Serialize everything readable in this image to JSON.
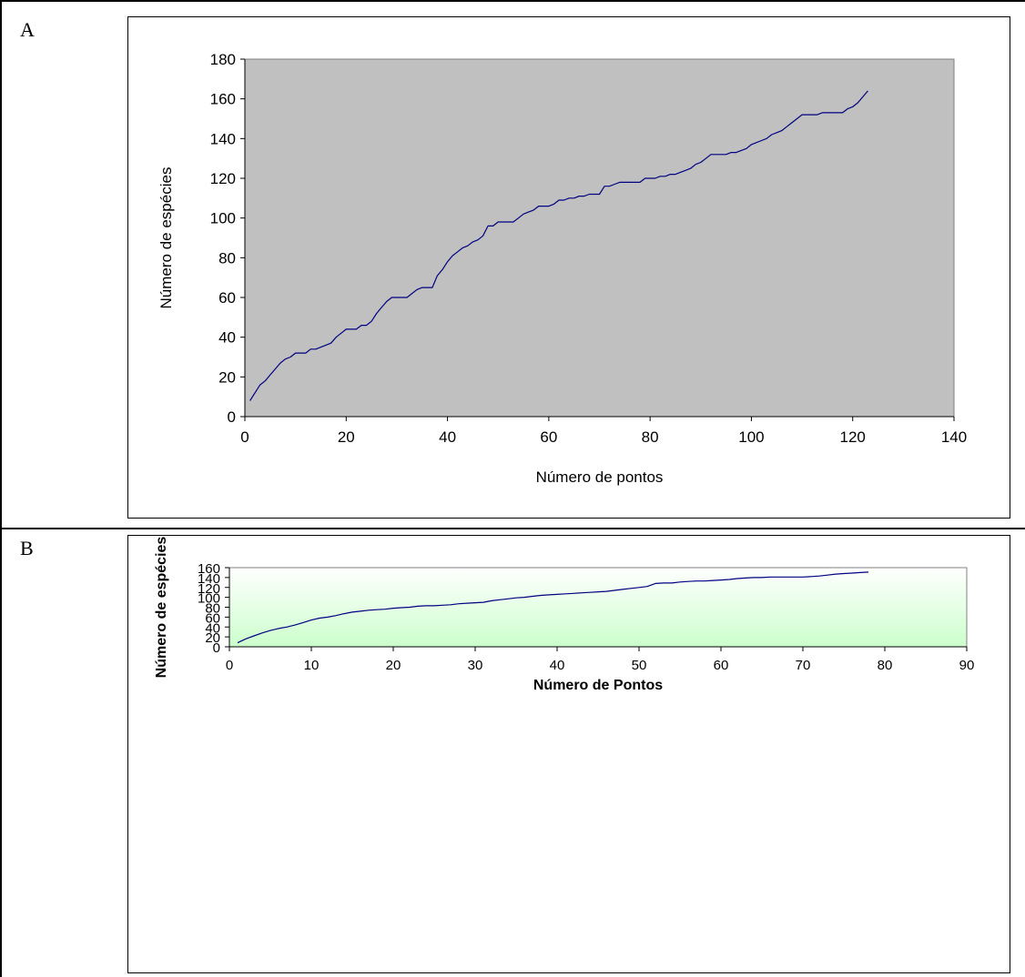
{
  "panels": [
    {
      "letter": "A"
    },
    {
      "letter": "B"
    }
  ],
  "chart_data": [
    {
      "type": "line",
      "title": "",
      "xlabel": "Número de pontos",
      "ylabel": "Número de espécies",
      "xlim": [
        0,
        140
      ],
      "ylim": [
        0,
        180
      ],
      "xticks": [
        "0",
        "20",
        "40",
        "60",
        "80",
        "100",
        "120",
        "140"
      ],
      "yticks": [
        "0",
        "20",
        "40",
        "60",
        "80",
        "100",
        "120",
        "140",
        "160",
        "180"
      ],
      "grid": false,
      "plot_background": "#c0c0c0",
      "line_color": "#000080",
      "series": [
        {
          "x": [
            1,
            2,
            3,
            4,
            5,
            6,
            7,
            8,
            9,
            10,
            11,
            12,
            13,
            14,
            15,
            16,
            17,
            18,
            19,
            20,
            21,
            22,
            23,
            24,
            25,
            26,
            27,
            28,
            29,
            30,
            31,
            32,
            33,
            34,
            35,
            36,
            37,
            38,
            39,
            40,
            41,
            42,
            43,
            44,
            45,
            46,
            47,
            48,
            49,
            50,
            51,
            52,
            53,
            54,
            55,
            56,
            57,
            58,
            59,
            60,
            61,
            62,
            63,
            64,
            65,
            66,
            67,
            68,
            69,
            70,
            71,
            72,
            73,
            74,
            75,
            76,
            77,
            78,
            79,
            80,
            81,
            82,
            83,
            84,
            85,
            86,
            87,
            88,
            89,
            90,
            91,
            92,
            93,
            94,
            95,
            96,
            97,
            98,
            99,
            100,
            101,
            102,
            103,
            104,
            105,
            106,
            107,
            108,
            109,
            110,
            111,
            112,
            113,
            114,
            115,
            116,
            117,
            118,
            119,
            120,
            121,
            122,
            123
          ],
          "y": [
            8,
            12,
            16,
            18,
            21,
            24,
            27,
            29,
            30,
            32,
            32,
            32,
            34,
            34,
            35,
            36,
            37,
            40,
            42,
            44,
            44,
            44,
            46,
            46,
            48,
            52,
            55,
            58,
            60,
            60,
            60,
            60,
            62,
            64,
            65,
            65,
            65,
            71,
            74,
            78,
            81,
            83,
            85,
            86,
            88,
            89,
            91,
            96,
            96,
            98,
            98,
            98,
            98,
            100,
            102,
            103,
            104,
            106,
            106,
            106,
            107,
            109,
            109,
            110,
            110,
            111,
            111,
            112,
            112,
            112,
            116,
            116,
            117,
            118,
            118,
            118,
            118,
            118,
            120,
            120,
            120,
            121,
            121,
            122,
            122,
            123,
            124,
            125,
            127,
            128,
            130,
            132,
            132,
            132,
            132,
            133,
            133,
            134,
            135,
            137,
            138,
            139,
            140,
            142,
            143,
            144,
            146,
            148,
            150,
            152,
            152,
            152,
            152,
            153,
            153,
            153,
            153,
            153,
            155,
            156,
            158,
            161,
            164
          ]
        }
      ]
    },
    {
      "type": "line",
      "title": "",
      "xlabel": "Número de Pontos",
      "ylabel": "Número de espécies",
      "xlim": [
        0,
        90
      ],
      "ylim": [
        0,
        160
      ],
      "xticks": [
        "0",
        "10",
        "20",
        "30",
        "40",
        "50",
        "60",
        "70",
        "80",
        "90"
      ],
      "yticks": [
        "0",
        "20",
        "40",
        "60",
        "80",
        "100",
        "120",
        "140",
        "160"
      ],
      "grid": false,
      "plot_background_top": "#ffffff",
      "plot_background_bottom": "#ccffcc",
      "line_color": "#000080",
      "series": [
        {
          "x": [
            1,
            2,
            3,
            4,
            5,
            6,
            7,
            8,
            9,
            10,
            11,
            12,
            13,
            14,
            15,
            16,
            17,
            18,
            19,
            20,
            21,
            22,
            23,
            24,
            25,
            26,
            27,
            28,
            29,
            30,
            31,
            32,
            33,
            34,
            35,
            36,
            37,
            38,
            39,
            40,
            41,
            42,
            43,
            44,
            45,
            46,
            47,
            48,
            49,
            50,
            51,
            52,
            53,
            54,
            55,
            56,
            57,
            58,
            59,
            60,
            61,
            62,
            63,
            64,
            65,
            66,
            67,
            68,
            69,
            70,
            71,
            72,
            73,
            74,
            75,
            76,
            77,
            78
          ],
          "y": [
            8,
            16,
            22,
            28,
            33,
            37,
            40,
            44,
            49,
            54,
            58,
            60,
            63,
            67,
            70,
            72,
            74,
            75,
            76,
            78,
            79,
            80,
            82,
            83,
            83,
            84,
            85,
            87,
            88,
            89,
            90,
            93,
            95,
            97,
            99,
            100,
            102,
            104,
            105,
            106,
            107,
            108,
            109,
            110,
            111,
            112,
            114,
            116,
            118,
            120,
            122,
            128,
            129,
            129,
            131,
            132,
            133,
            133,
            134,
            135,
            136,
            138,
            139,
            140,
            140,
            141,
            141,
            141,
            141,
            141,
            142,
            143,
            145,
            147,
            148,
            149,
            150,
            151
          ]
        }
      ]
    }
  ]
}
